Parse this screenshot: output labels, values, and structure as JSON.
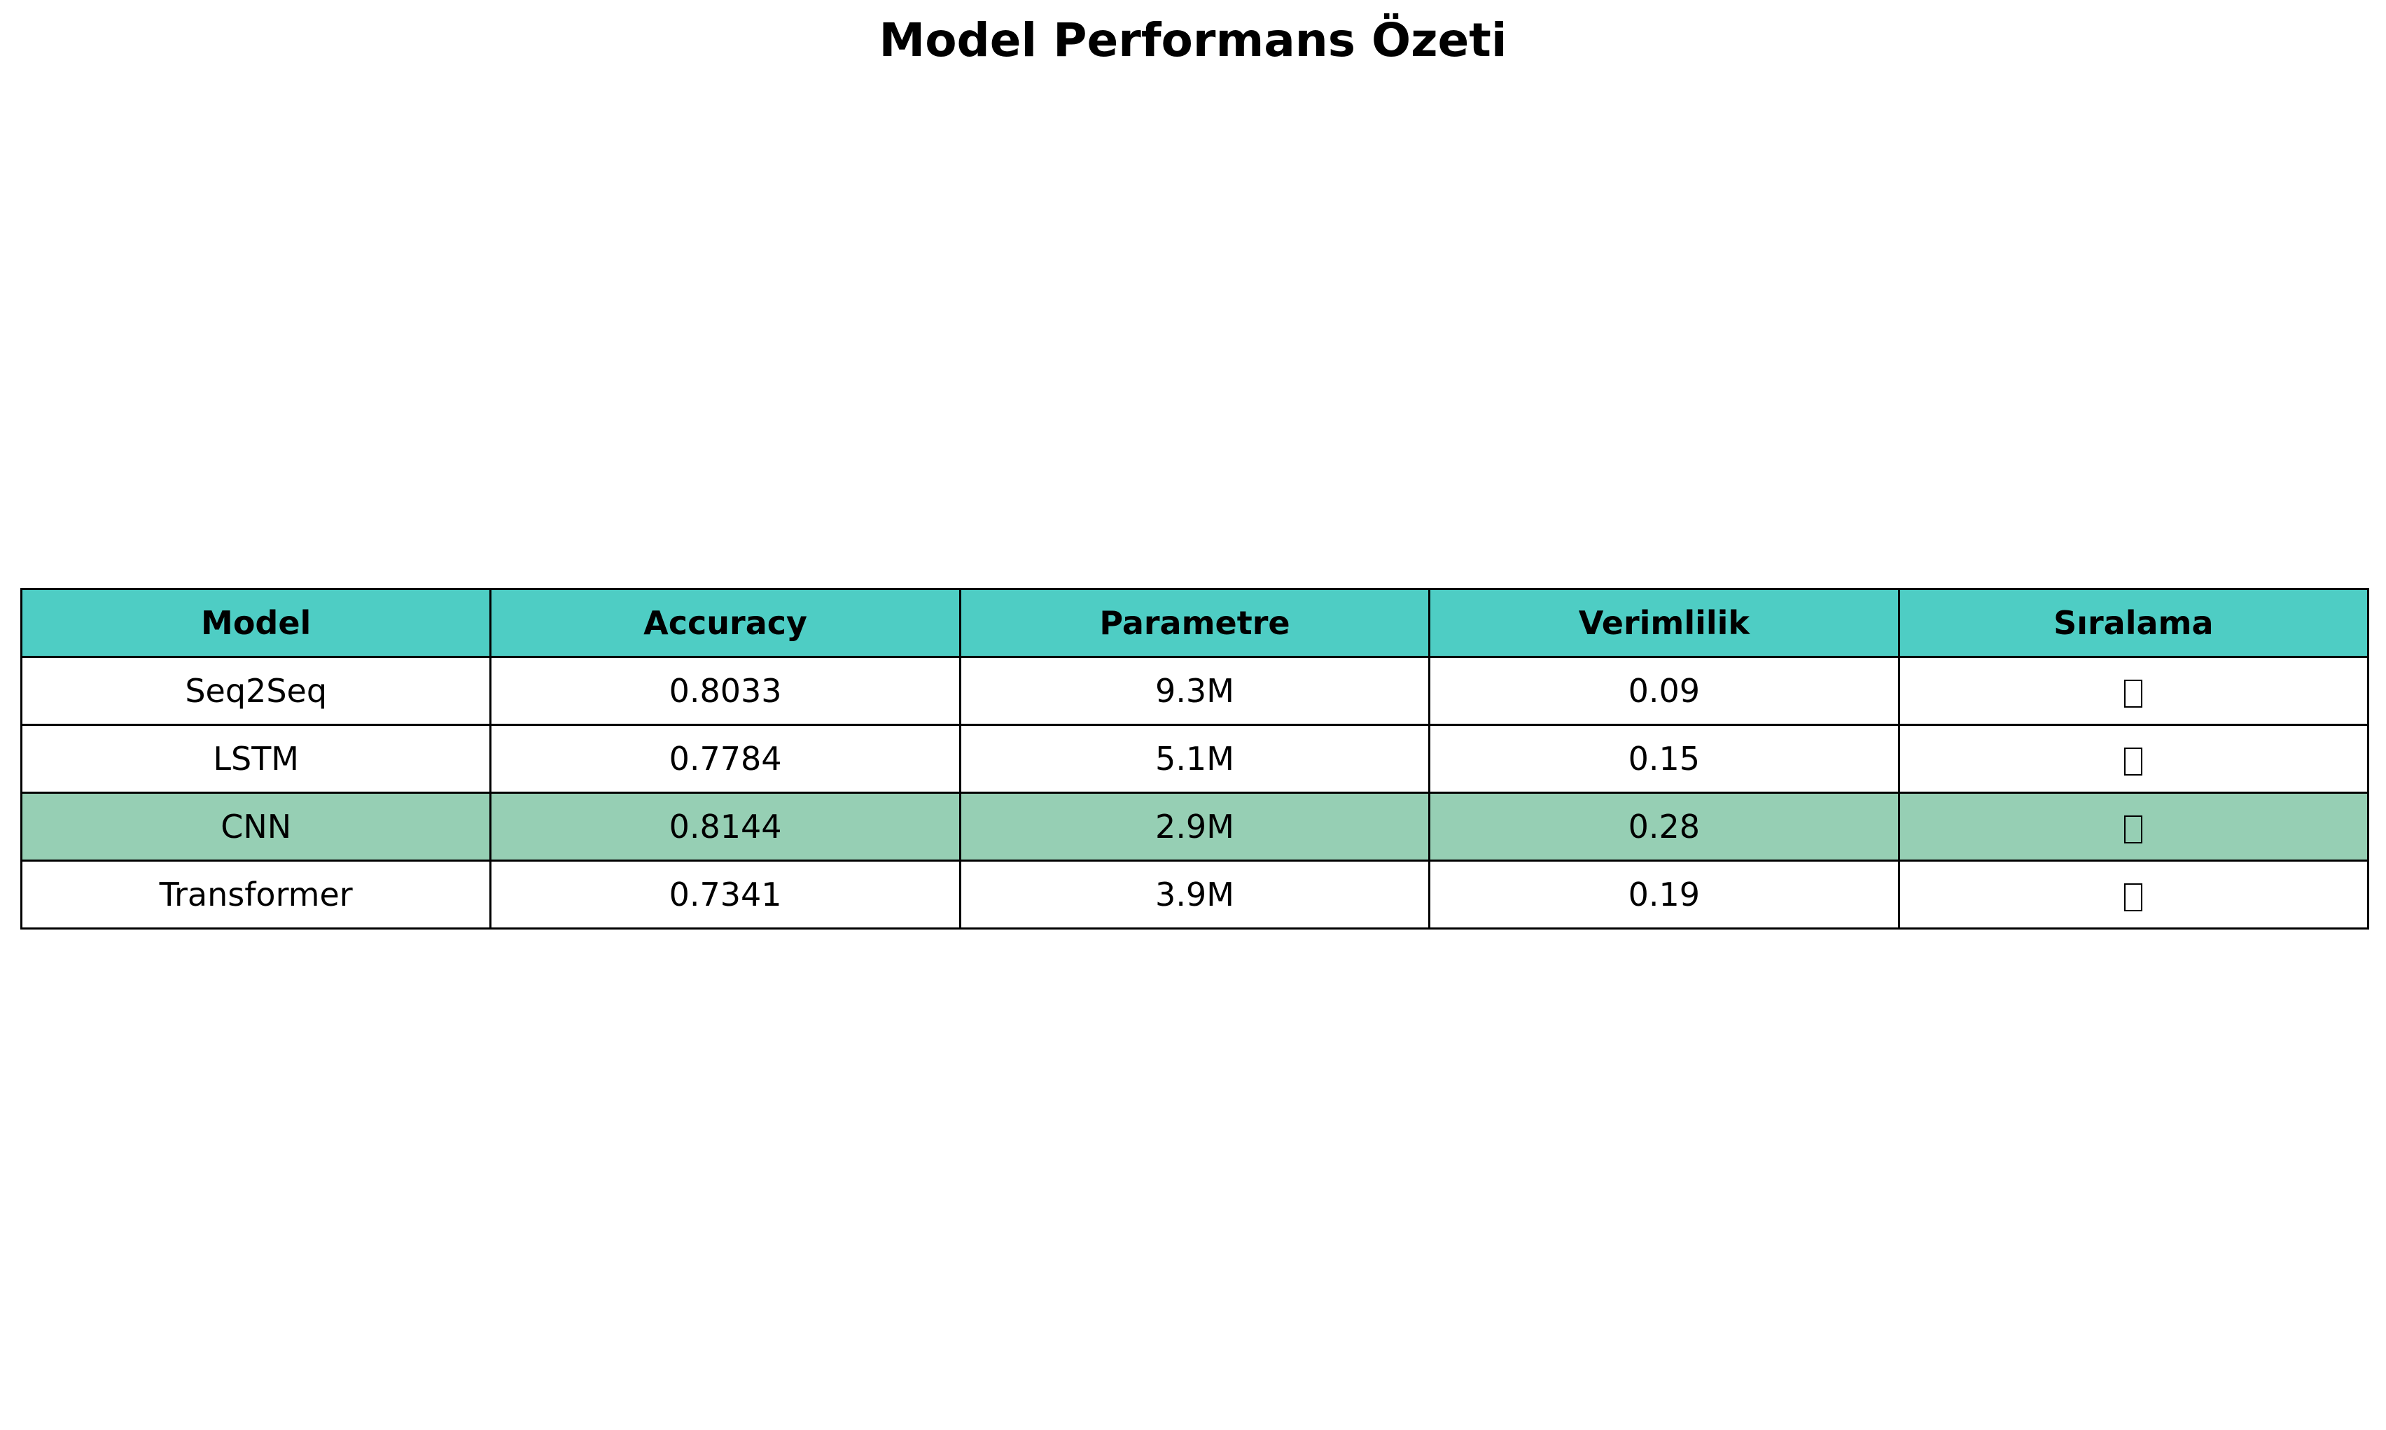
{
  "title": "Model Performans Özeti",
  "colors": {
    "header_bg": "#4ecdc4",
    "highlight_row_bg": "#96cfb4",
    "row_bg": "#ffffff",
    "border": "#000000"
  },
  "chart_data": {
    "type": "table",
    "title": "Model Performans Özeti",
    "columns": [
      "Model",
      "Accuracy",
      "Parametre",
      "Verimlilik",
      "Sıralama"
    ],
    "rows": [
      {
        "model": "Seq2Seq",
        "accuracy": "0.8033",
        "parameters": "9.3M",
        "efficiency": "0.09",
        "rank_icon": "missing-glyph-box",
        "highlighted": false
      },
      {
        "model": "LSTM",
        "accuracy": "0.7784",
        "parameters": "5.1M",
        "efficiency": "0.15",
        "rank_icon": "missing-glyph-box",
        "highlighted": false
      },
      {
        "model": "CNN",
        "accuracy": "0.8144",
        "parameters": "2.9M",
        "efficiency": "0.28",
        "rank_icon": "missing-glyph-box",
        "highlighted": true
      },
      {
        "model": "Transformer",
        "accuracy": "0.7341",
        "parameters": "3.9M",
        "efficiency": "0.19",
        "rank_icon": "missing-glyph-box",
        "highlighted": false
      }
    ]
  }
}
